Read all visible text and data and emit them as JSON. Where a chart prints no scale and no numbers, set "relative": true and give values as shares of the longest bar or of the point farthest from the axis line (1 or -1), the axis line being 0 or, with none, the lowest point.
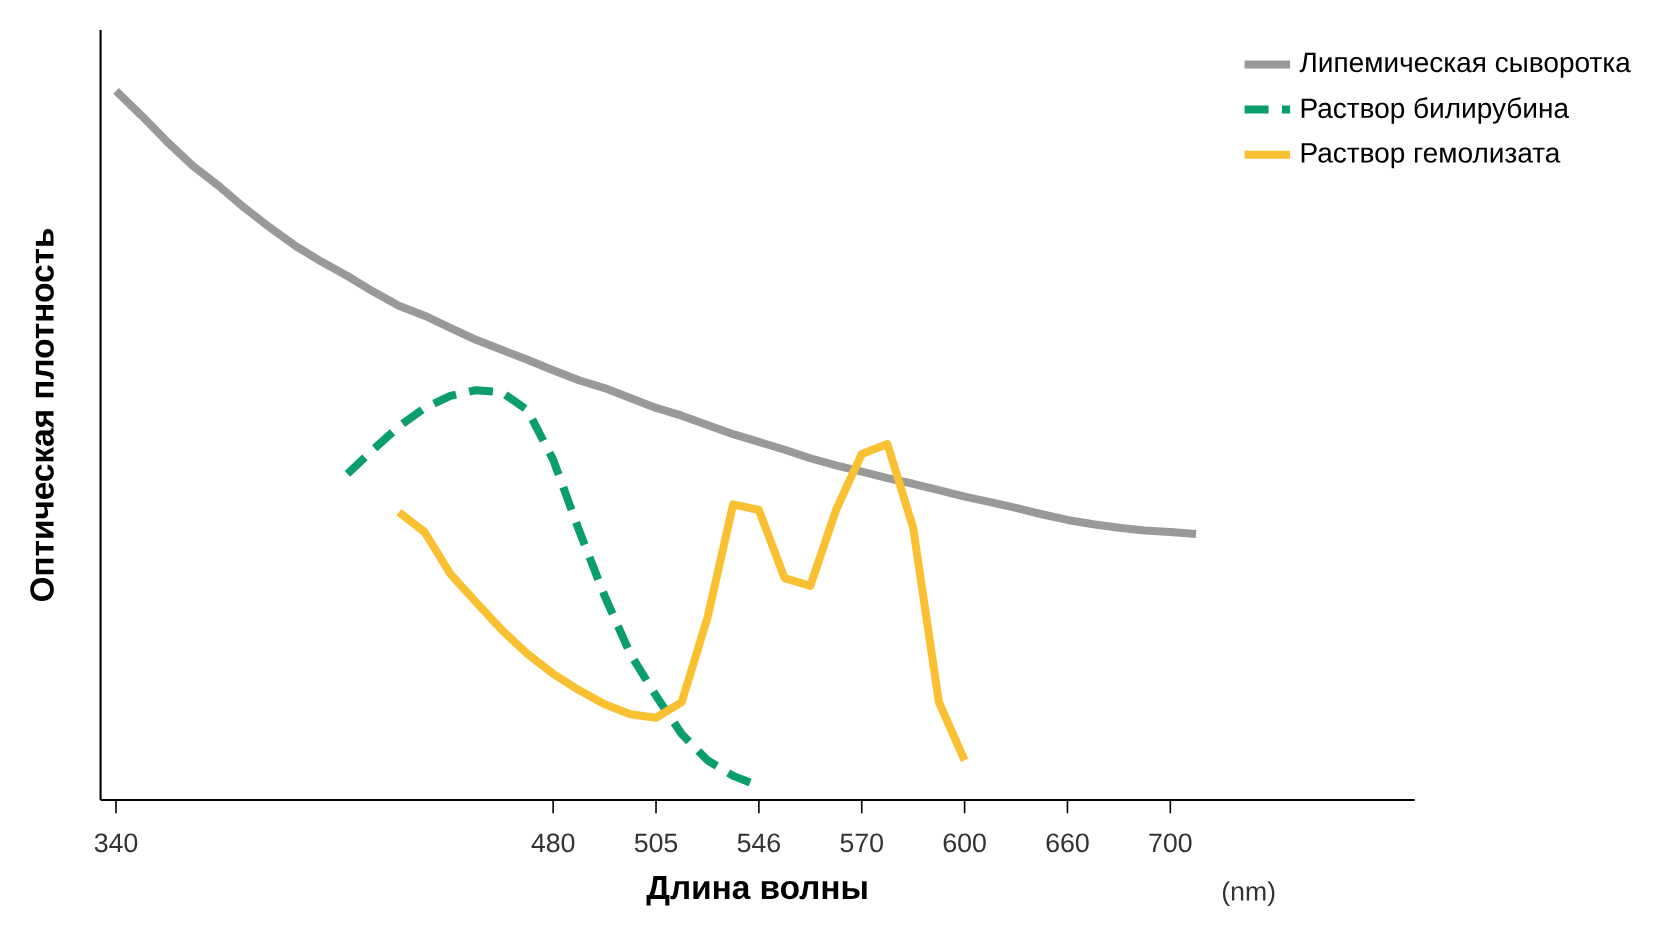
{
  "chart_data": {
    "type": "line",
    "relative": true,
    "xlabel": "Длина волны",
    "ylabel": "Оптическая плотность",
    "categories": [
      "340",
      null,
      null,
      null,
      null,
      null,
      null,
      null,
      null,
      null,
      null,
      null,
      null,
      null,
      null,
      null,
      null,
      "480",
      null,
      null,
      null,
      "505",
      null,
      null,
      null,
      "546",
      null,
      null,
      null,
      "570",
      null,
      null,
      null,
      "600",
      null,
      null,
      null,
      "660",
      null,
      null,
      null,
      "700",
      null,
      null,
      null,
      null,
      null,
      null,
      null,
      null,
      null
    ],
    "legend": "top right",
    "marker": "none",
    "annotations": [
      "(nm)"
    ],
    "series": [
      {
        "name": "Липемическая сыворотка",
        "color": "#999999",
        "line_style": "solid",
        "values": [
          1.0,
          0.965,
          0.928,
          0.894,
          0.866,
          0.835,
          0.807,
          0.781,
          0.759,
          0.739,
          0.717,
          0.697,
          0.683,
          0.666,
          0.649,
          0.635,
          0.621,
          0.606,
          0.592,
          0.581,
          0.567,
          0.553,
          0.542,
          0.529,
          0.516,
          0.505,
          0.494,
          0.482,
          0.472,
          0.463,
          0.454,
          0.446,
          0.437,
          0.428,
          0.42,
          0.412,
          0.403,
          0.395,
          0.389,
          0.384,
          0.38,
          0.378,
          0.375,
          null,
          null,
          null,
          null,
          null,
          null,
          null,
          null
        ]
      },
      {
        "name": "Раствор билирубина",
        "color": "#0a9e6e",
        "line_style": "dashed",
        "values": [
          null,
          null,
          null,
          null,
          null,
          null,
          null,
          null,
          null,
          0.46,
          0.494,
          0.527,
          0.553,
          0.57,
          0.578,
          0.575,
          0.55,
          0.48,
          0.381,
          0.288,
          0.206,
          0.147,
          0.093,
          0.056,
          0.034,
          0.02,
          null,
          null,
          null,
          null,
          null,
          null,
          null,
          null,
          null,
          null,
          null,
          null,
          null,
          null,
          null,
          null,
          null,
          null,
          null,
          null,
          null,
          null,
          null,
          null,
          null
        ]
      },
      {
        "name": "Раствор гемолизата",
        "color": "#f9c031",
        "line_style": "solid",
        "values": [
          null,
          null,
          null,
          null,
          null,
          null,
          null,
          null,
          null,
          null,
          null,
          0.406,
          0.378,
          0.319,
          0.279,
          0.24,
          0.206,
          0.178,
          0.155,
          0.135,
          0.121,
          0.116,
          0.138,
          0.257,
          0.417,
          0.409,
          0.313,
          0.302,
          0.409,
          0.488,
          0.502,
          0.384,
          0.138,
          0.056,
          null,
          null,
          null,
          null,
          null,
          null,
          null,
          null,
          null,
          null,
          null,
          null,
          null,
          null,
          null,
          null,
          null
        ]
      }
    ]
  }
}
